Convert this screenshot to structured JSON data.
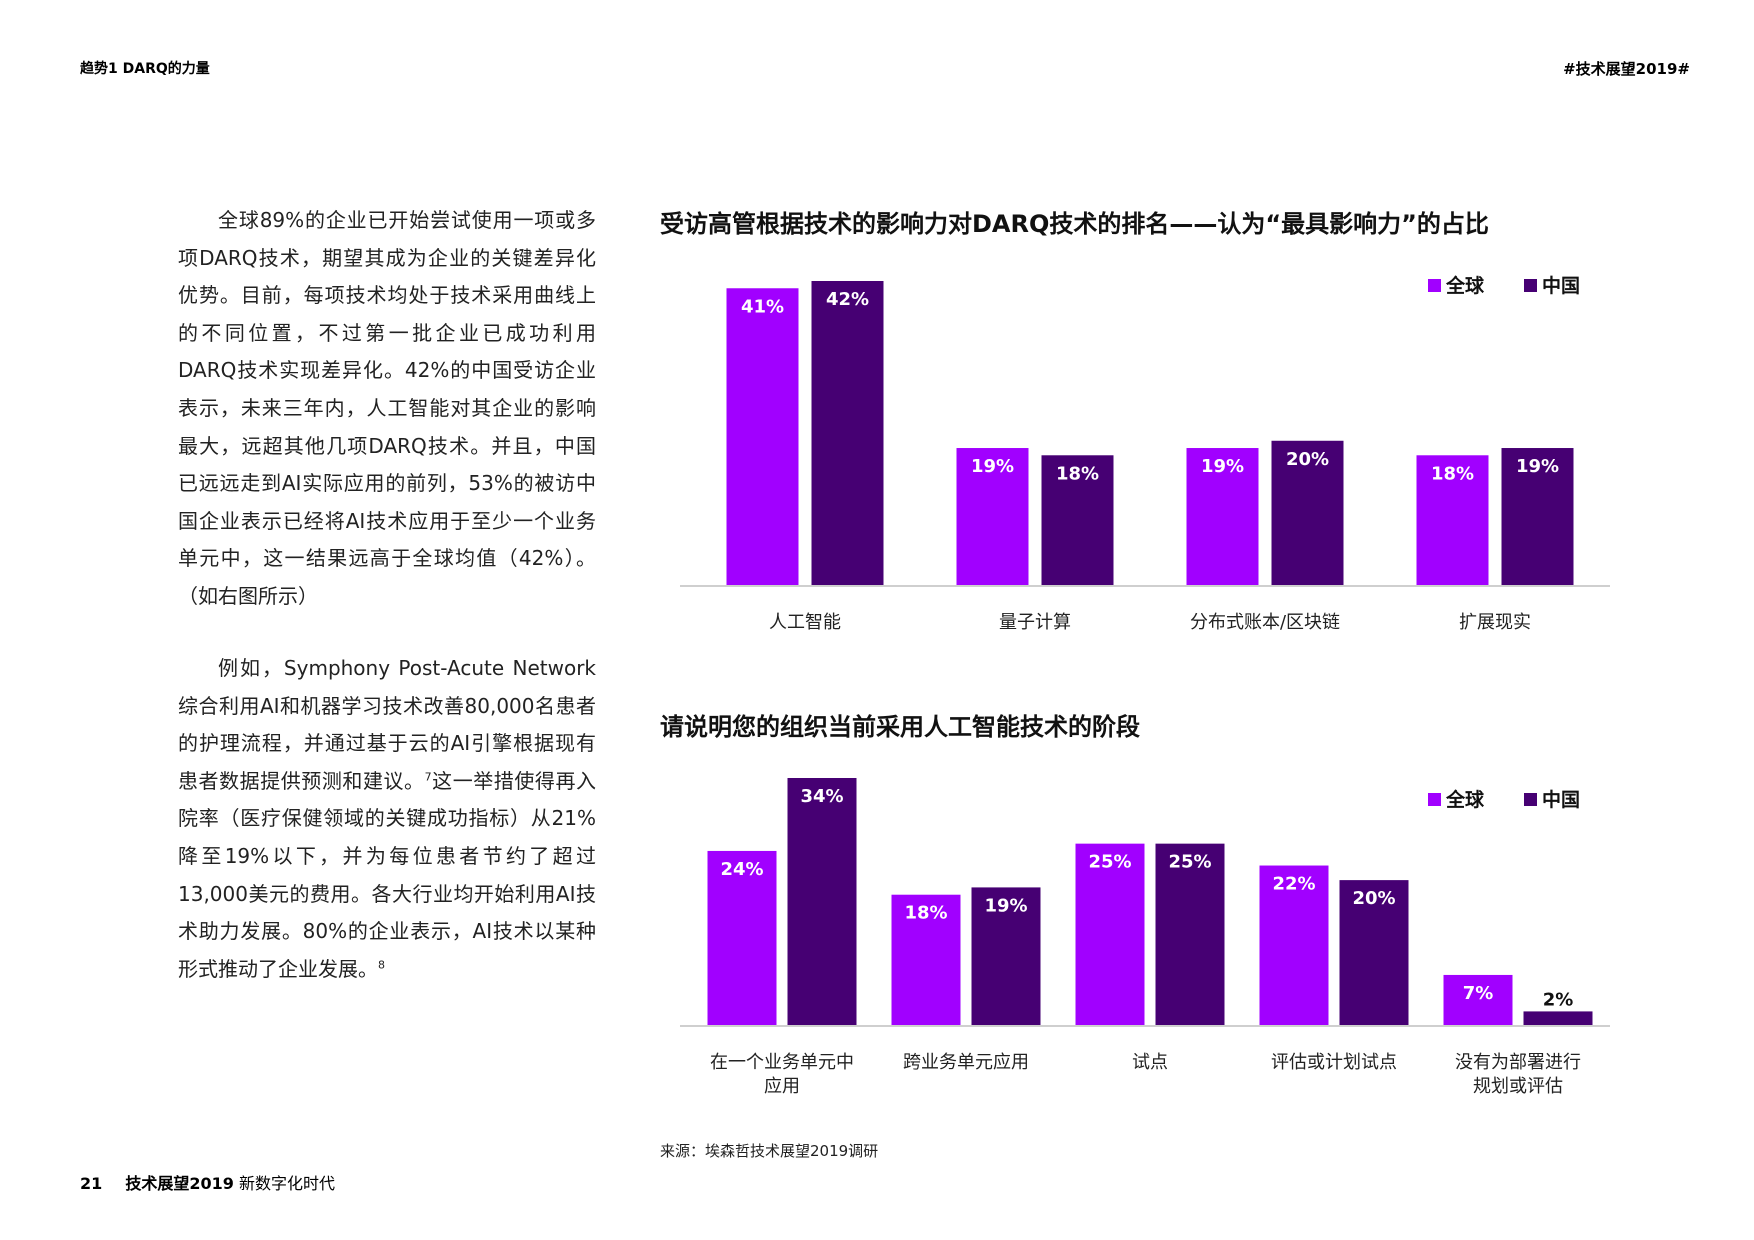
{
  "header": {
    "left": "趋势1 DARQ的力量",
    "right": "#技术展望2019#"
  },
  "body": {
    "paragraph1": "全球89%的企业已开始尝试使用一项或多项DARQ技术，期望其成为企业的关键差异化优势。目前，每项技术均处于技术采用曲线上的不同位置，不过第一批企业已成功利用DARQ技术实现差异化。42%的中国受访企业表示，未来三年内，人工智能对其企业的影响最大，远超其他几项DARQ技术。并且，中国已远远走到AI实际应用的前列，53%的被访中国企业表示已经将AI技术应用于至少一个业务单元中，这一结果远高于全球均值（42%）。（如右图所示）",
    "paragraph2": "例如，Symphony Post-Acute Network综合利用AI和机器学习技术改善80,000名患者的护理流程，并通过基于云的AI引擎根据现有患者数据提供预测和建议。",
    "paragraph2_sup": "7",
    "paragraph2_cont": "这一举措使得再入院率（医疗保健领域的关键成功指标）从21%降至19%以下，并为每位患者节约了超过13,000美元的费用。各大行业均开始利用AI技术助力发展。80%的企业表示，AI技术以某种形式推动了企业发展。",
    "paragraph2_sup2": "8"
  },
  "colors": {
    "global": "#a100ff",
    "china": "#460073",
    "axis": "#cfcfcf",
    "label": "#ffffff"
  },
  "chart_data": [
    {
      "type": "bar",
      "title": "受访高管根据技术的影响力对DARQ技术的排名——认为“最具影响力”的占比",
      "categories": [
        "人工智能",
        "量子计算",
        "分布式账本/区块链",
        "扩展现实"
      ],
      "series": [
        {
          "name": "全球",
          "values": [
            41,
            19,
            19,
            18
          ],
          "labels": [
            "41%",
            "19%",
            "19%",
            "18%"
          ]
        },
        {
          "name": "中国",
          "values": [
            42,
            18,
            20,
            19
          ],
          "labels": [
            "42%",
            "18%",
            "20%",
            "19%"
          ]
        }
      ],
      "ylim": [
        0,
        42
      ],
      "legend": "top-right",
      "grid": false
    },
    {
      "type": "bar",
      "title": "请说明您的组织当前采用人工智能技术的阶段",
      "categories": [
        "在一个业务单元中应用",
        "跨业务单元应用",
        "试点",
        "评估或计划试点",
        "没有为部署进行规划或评估"
      ],
      "categories_lines": [
        [
          "在一个业务单元中",
          "应用"
        ],
        [
          "跨业务单元应用"
        ],
        [
          "试点"
        ],
        [
          "评估或计划试点"
        ],
        [
          "没有为部署进行",
          "规划或评估"
        ]
      ],
      "series": [
        {
          "name": "全球",
          "values": [
            24,
            18,
            25,
            22,
            7
          ],
          "labels": [
            "24%",
            "18%",
            "25%",
            "22%",
            "7%"
          ]
        },
        {
          "name": "中国",
          "values": [
            34,
            19,
            25,
            20,
            2
          ],
          "labels": [
            "34%",
            "19%",
            "25%",
            "20%",
            "2%"
          ]
        }
      ],
      "ylim": [
        0,
        34
      ],
      "legend": "top-right",
      "grid": false
    }
  ],
  "source": "来源：埃森哲技术展望2019调研",
  "footer": {
    "page": "21",
    "title": "技术展望2019",
    "subtitle": "新数字化时代"
  }
}
